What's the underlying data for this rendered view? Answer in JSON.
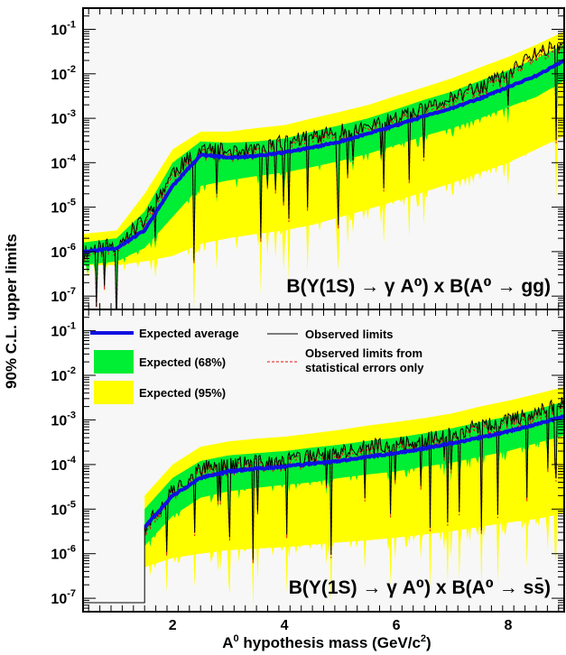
{
  "chart_data": [
    {
      "type": "area",
      "panel": "top",
      "process_label": "B(Υ(1S) → γ A⁰) x B(A⁰ → gg)",
      "xlim": [
        0.4,
        9.0
      ],
      "ylim": [
        5e-08,
        0.3
      ],
      "yscale": "log",
      "xticks": [
        2,
        4,
        6,
        8
      ],
      "yticks": [
        1e-07,
        1e-06,
        1e-05,
        0.0001,
        0.001,
        0.01,
        0.1
      ],
      "ytick_labels": [
        "10-7",
        "10-6",
        "10-5",
        "10-4",
        "10-3",
        "10-2",
        "10-1"
      ],
      "x": [
        0.4,
        1.0,
        1.5,
        2.0,
        2.5,
        3.0,
        3.5,
        4.0,
        4.5,
        5.0,
        5.5,
        6.0,
        6.5,
        7.0,
        7.5,
        8.0,
        8.5,
        9.0
      ],
      "series": [
        {
          "name": "Expected average",
          "values": [
            1e-06,
            1.2e-06,
            3e-06,
            3e-05,
            0.00015,
            0.00013,
            0.00014,
            0.00017,
            0.00022,
            0.0003,
            0.00045,
            0.0007,
            0.0011,
            0.0017,
            0.0028,
            0.005,
            0.009,
            0.02
          ]
        },
        {
          "name": "Expected (68%)",
          "low": [
            5e-07,
            6e-07,
            1.2e-06,
            6e-06,
            3e-05,
            4e-05,
            5e-05,
            6e-05,
            8e-05,
            0.00011,
            0.00016,
            0.00025,
            0.0004,
            0.0006,
            0.001,
            0.0018,
            0.003,
            0.007
          ],
          "high": [
            1.6e-06,
            2e-06,
            8e-06,
            0.0001,
            0.0003,
            0.00028,
            0.0003,
            0.00035,
            0.0005,
            0.0007,
            0.001,
            0.0016,
            0.0026,
            0.004,
            0.007,
            0.012,
            0.022,
            0.045
          ]
        },
        {
          "name": "Expected (95%)",
          "low": [
            5e-07,
            5e-07,
            6e-07,
            8e-07,
            1.5e-06,
            2e-06,
            2.5e-06,
            3e-06,
            4e-06,
            6e-06,
            9e-06,
            1.4e-05,
            2.2e-05,
            3.5e-05,
            6e-05,
            0.0001,
            0.0002,
            0.0004
          ],
          "high": [
            2.5e-06,
            3e-06,
            2e-05,
            0.0002,
            0.0005,
            0.0005,
            0.0006,
            0.0007,
            0.001,
            0.0014,
            0.002,
            0.0032,
            0.005,
            0.008,
            0.014,
            0.024,
            0.045,
            0.09
          ]
        },
        {
          "name": "Observed limits",
          "values": [
            1e-06,
            1.5e-06,
            5e-06,
            6e-05,
            0.0002,
            0.00018,
            0.0002,
            0.0003,
            0.0004,
            0.0005,
            0.0006,
            0.001,
            0.0015,
            0.003,
            0.005,
            0.01,
            0.03,
            0.05
          ]
        }
      ]
    },
    {
      "type": "area",
      "panel": "bottom",
      "process_label": "B(Υ(1S) → γ A⁰) x B(A⁰ → ss̄)",
      "xlim": [
        0.4,
        9.0
      ],
      "ylim": [
        5e-08,
        0.3
      ],
      "yscale": "log",
      "xticks": [
        2,
        4,
        6,
        8
      ],
      "yticks": [
        1e-07,
        1e-06,
        1e-05,
        0.0001,
        0.001,
        0.01,
        0.1
      ],
      "ytick_labels": [
        "10-7",
        "10-6",
        "10-5",
        "10-4",
        "10-3",
        "10-2",
        "10-1"
      ],
      "threshold_x": 1.5,
      "x": [
        1.5,
        2.0,
        2.5,
        3.0,
        3.5,
        4.0,
        4.5,
        5.0,
        5.5,
        6.0,
        6.5,
        7.0,
        7.5,
        8.0,
        8.5,
        9.0
      ],
      "series": [
        {
          "name": "Expected average",
          "values": [
            4e-06,
            2e-05,
            5e-05,
            7e-05,
            8e-05,
            9e-05,
            0.000105,
            0.00012,
            0.00015,
            0.00018,
            0.00023,
            0.0003,
            0.0004,
            0.00055,
            0.0008,
            0.0012
          ]
        },
        {
          "name": "Expected (68%)",
          "low": [
            1.5e-06,
            7e-06,
            1.8e-05,
            2.5e-05,
            3e-05,
            3.5e-05,
            4e-05,
            5e-05,
            6e-05,
            7e-05,
            9e-05,
            0.00011,
            0.00015,
            0.0002,
            0.0003,
            0.00045
          ],
          "high": [
            1e-05,
            5e-05,
            0.00012,
            0.00016,
            0.00018,
            0.0002,
            0.00024,
            0.00028,
            0.00034,
            0.0004,
            0.0005,
            0.00065,
            0.0009,
            0.0012,
            0.0017,
            0.0026
          ]
        },
        {
          "name": "Expected (95%)",
          "low": [
            5e-07,
            8e-07,
            1e-06,
            1.2e-06,
            1.3e-06,
            1.4e-06,
            1.6e-06,
            1.8e-06,
            2e-06,
            2.3e-06,
            2.7e-06,
            3.2e-06,
            4e-06,
            5e-06,
            6e-06,
            8e-06
          ],
          "high": [
            2e-05,
            0.0001,
            0.00025,
            0.00033,
            0.00038,
            0.00042,
            0.0005,
            0.0006,
            0.00075,
            0.0009,
            0.0011,
            0.0014,
            0.002,
            0.0027,
            0.0038,
            0.0055
          ]
        },
        {
          "name": "Observed limits",
          "values": [
            4e-06,
            2.5e-05,
            8e-05,
            0.0001,
            0.00011,
            0.00012,
            0.00015,
            0.00018,
            0.00025,
            0.0003,
            0.00035,
            0.0005,
            0.0007,
            0.001,
            0.0015,
            0.0025
          ]
        }
      ]
    }
  ],
  "axes": {
    "xlabel": "A0 hypothesis mass (GeV/c2)",
    "ylabel": "90% C.L. upper limits"
  },
  "legend": {
    "expected_average": "Expected average",
    "observed_limits": "Observed limits",
    "expected_68": "Expected (68%)",
    "expected_95": "Expected (95%)",
    "observed_stat_line1": "Observed limits from",
    "observed_stat_line2": "statistical errors only"
  },
  "colors": {
    "band95": "#ffff00",
    "band68": "#00ee33",
    "expected_average": "#1010e0",
    "observed": "#000000",
    "observed_stat": "#e01010",
    "background_fill": "#f7f7f7"
  }
}
